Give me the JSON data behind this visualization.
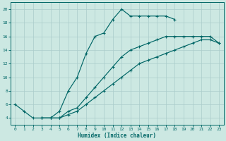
{
  "xlabel": "Humidex (Indice chaleur)",
  "xlim": [
    -0.5,
    23.5
  ],
  "ylim": [
    3.0,
    21.0
  ],
  "xticks": [
    0,
    1,
    2,
    3,
    4,
    5,
    6,
    7,
    8,
    9,
    10,
    11,
    12,
    13,
    14,
    15,
    16,
    17,
    18,
    19,
    20,
    21,
    22,
    23
  ],
  "yticks": [
    4,
    6,
    8,
    10,
    12,
    14,
    16,
    18,
    20
  ],
  "bg_color": "#cce8e2",
  "grid_color": "#aaccca",
  "line_color": "#006666",
  "figsize": [
    3.2,
    2.0
  ],
  "dpi": 100,
  "curve_main_x": [
    0,
    1,
    2,
    3,
    4,
    5,
    6,
    7,
    8,
    9,
    10,
    11,
    12,
    13,
    14,
    15,
    16,
    17,
    18
  ],
  "curve_main_y": [
    6,
    5,
    4,
    4,
    4,
    5,
    8,
    10,
    13.5,
    16,
    16.5,
    18.5,
    20,
    19,
    19,
    19,
    19,
    19,
    18.5
  ],
  "curve_low_x": [
    3,
    4,
    5,
    6,
    7,
    8,
    9,
    10,
    11,
    12,
    13,
    14,
    15,
    16,
    17,
    18,
    19,
    20,
    21,
    22,
    23
  ],
  "curve_low_y": [
    4,
    4,
    4,
    4.5,
    5,
    6,
    7,
    8,
    9,
    10,
    11,
    12,
    12.5,
    13,
    13.5,
    14,
    14.5,
    15,
    15.5,
    15.5,
    15
  ],
  "curve_mid_x": [
    3,
    4,
    5,
    6,
    7,
    8,
    9,
    10,
    11,
    12,
    13,
    14,
    15,
    16,
    17,
    18,
    19,
    20,
    21,
    22,
    23
  ],
  "curve_mid_y": [
    4,
    4,
    4,
    5,
    5.5,
    7,
    8.5,
    10,
    11.5,
    13,
    14,
    14.5,
    15,
    15.5,
    16,
    16,
    16,
    16,
    16,
    16,
    15
  ]
}
